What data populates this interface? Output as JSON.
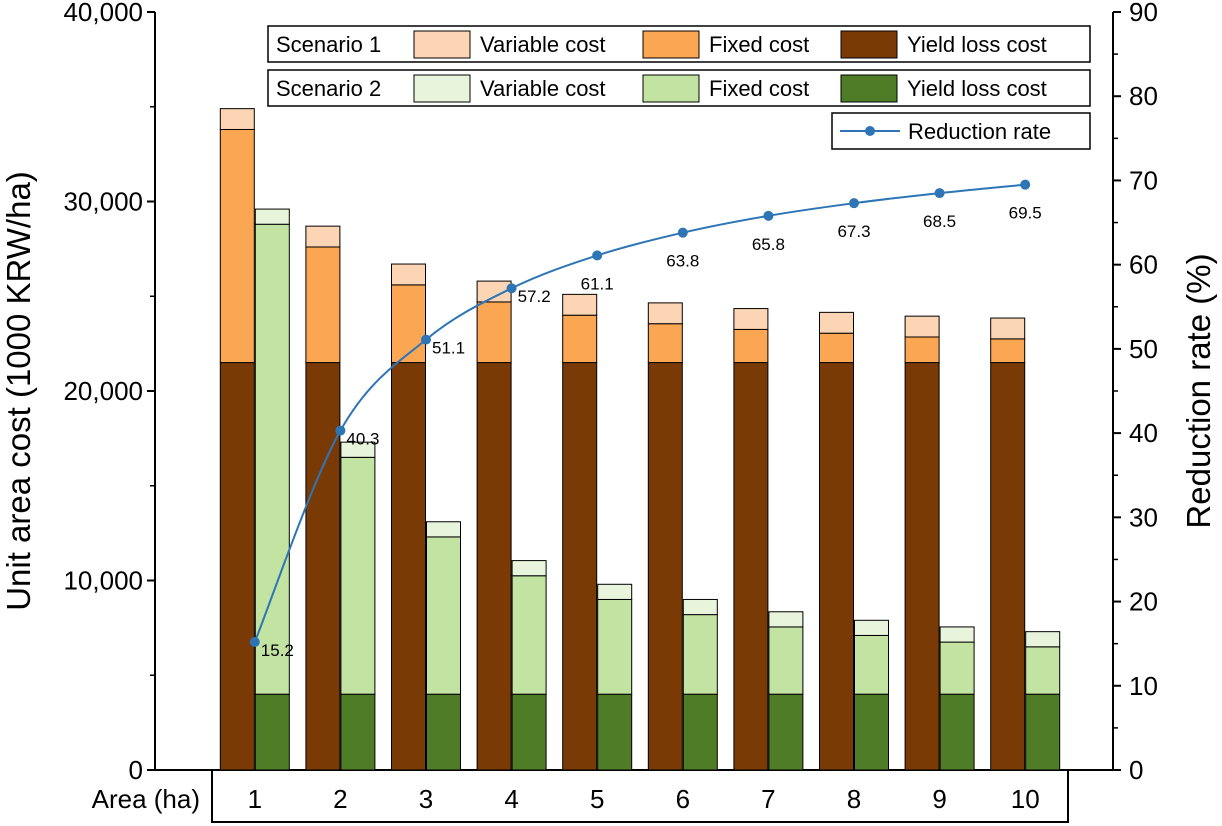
{
  "chart_data": {
    "type": "bar",
    "stacked": true,
    "grouped": true,
    "x_label": "Area (ha)",
    "categories": [
      "1",
      "2",
      "3",
      "4",
      "5",
      "6",
      "7",
      "8",
      "9",
      "10"
    ],
    "y_left": {
      "label": "Unit area cost (1000 KRW/ha)",
      "range": [
        0,
        40000
      ],
      "ticks": [
        0,
        10000,
        20000,
        30000,
        40000
      ],
      "tick_labels": [
        "0",
        "10,000",
        "20,000",
        "30,000",
        "40,000"
      ]
    },
    "y_right": {
      "label": "Reduction rate (%)",
      "range": [
        0,
        90
      ],
      "ticks": [
        0,
        10,
        20,
        30,
        40,
        50,
        60,
        70,
        80,
        90
      ],
      "tick_labels": [
        "0",
        "10",
        "20",
        "30",
        "40",
        "50",
        "60",
        "70",
        "80",
        "90"
      ]
    },
    "scenarios": [
      {
        "name": "Scenario 1",
        "series": [
          {
            "name": "Yield loss cost",
            "color": "#7a3a06",
            "values": [
              21500,
              21500,
              21500,
              21500,
              21500,
              21500,
              21500,
              21500,
              21500,
              21500
            ]
          },
          {
            "name": "Fixed cost",
            "color": "#fba653",
            "values": [
              12300,
              6100,
              4100,
              3200,
              2500,
              2050,
              1750,
              1550,
              1350,
              1250
            ]
          },
          {
            "name": "Variable cost",
            "color": "#fcd5b5",
            "values": [
              1100,
              1100,
              1100,
              1100,
              1100,
              1100,
              1100,
              1100,
              1100,
              1100
            ]
          }
        ]
      },
      {
        "name": "Scenario 2",
        "series": [
          {
            "name": "Yield loss cost",
            "color": "#4f7d27",
            "values": [
              4000,
              4000,
              4000,
              4000,
              4000,
              4000,
              4000,
              4000,
              4000,
              4000
            ]
          },
          {
            "name": "Fixed cost",
            "color": "#c2e3a2",
            "values": [
              24800,
              12500,
              8300,
              6250,
              5000,
              4200,
              3550,
              3100,
              2750,
              2500
            ]
          },
          {
            "name": "Variable cost",
            "color": "#e8f4dc",
            "values": [
              800,
              800,
              800,
              800,
              800,
              800,
              800,
              800,
              800,
              800
            ]
          }
        ]
      }
    ],
    "line": {
      "name": "Reduction rate",
      "color": "#2e75b6",
      "values": [
        15.2,
        40.3,
        51.1,
        57.2,
        61.1,
        63.8,
        65.8,
        67.3,
        68.5,
        69.5
      ],
      "labels": [
        "15.2",
        "40.3",
        "51.1",
        "57.2",
        "61.1",
        "63.8",
        "65.8",
        "67.3",
        "68.5",
        "69.5"
      ]
    },
    "legend": {
      "row1": {
        "label": "Scenario 1",
        "items": [
          "Variable cost",
          "Fixed cost",
          "Yield loss cost"
        ]
      },
      "row2": {
        "label": "Scenario 2",
        "items": [
          "Variable cost",
          "Fixed cost",
          "Yield loss cost"
        ]
      },
      "row3": {
        "items": [
          "Reduction rate"
        ]
      },
      "placement": "top-right"
    }
  }
}
